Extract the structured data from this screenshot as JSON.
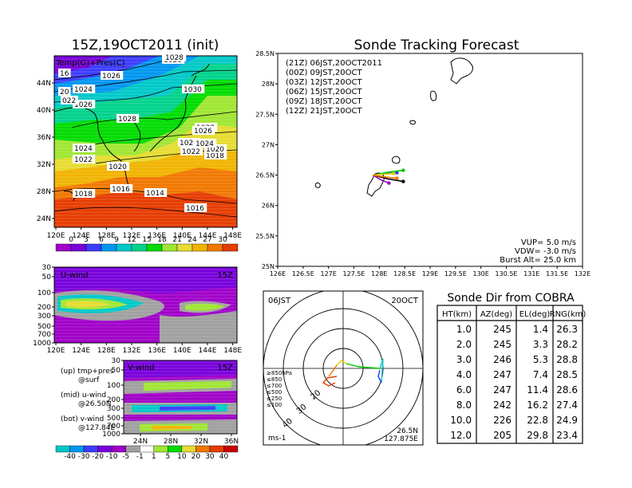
{
  "chart_data": [
    {
      "type": "map",
      "panel": "surface",
      "title": "15Z,19OCT2011 (init)",
      "label": "Temp(G)+Pres(C)",
      "x_ticks": [
        "120E",
        "124E",
        "128E",
        "132E",
        "136E",
        "140E",
        "144E",
        "148E"
      ],
      "y_ticks": [
        "24N",
        "28N",
        "32N",
        "36N",
        "40N",
        "44N"
      ],
      "isobar_labels": [
        "1028",
        "1026",
        "1024",
        "1026",
        "1028",
        "1030",
        "1028",
        "1026",
        "1024",
        "1022",
        "1020",
        "1018",
        "1016",
        "1014",
        "1016",
        "1018",
        "1020",
        "1022",
        "1024",
        "1026",
        "1028",
        "16",
        "20",
        "022"
      ],
      "colorbar": {
        "labels": [
          "0",
          "3",
          "6",
          "9",
          "12",
          "15",
          "18",
          "21",
          "24",
          "27",
          "30"
        ],
        "colors": [
          "#a000c8",
          "#7800dc",
          "#3c3cff",
          "#0096f0",
          "#00c8c8",
          "#00d28c",
          "#00dc00",
          "#a0e632",
          "#e6dc32",
          "#f0b400",
          "#f07800",
          "#e63c00"
        ]
      }
    },
    {
      "type": "cross-section",
      "panel": "u-wind",
      "label": "U-wind",
      "time": "15Z",
      "x_ticks": [
        "120E",
        "124E",
        "128E",
        "132E",
        "136E",
        "140E",
        "144E",
        "148E"
      ],
      "y_ticks": [
        "30",
        "50",
        "100",
        "200",
        "300",
        "500",
        "700",
        "1000"
      ]
    },
    {
      "type": "cross-section",
      "panel": "v-wind",
      "label": "V-wind",
      "time": "15Z",
      "x_ticks": [
        "24N",
        "28N",
        "32N",
        "36N"
      ],
      "y_ticks": [
        "30",
        "50",
        "100",
        "200",
        "300",
        "500",
        "700",
        "1000"
      ],
      "colorbar": {
        "labels": [
          "-40",
          "-30",
          "-20",
          "-10",
          "-5",
          "-1",
          "1",
          "5",
          "10",
          "20",
          "30",
          "40"
        ],
        "colors": [
          "#00c8c8",
          "#0096f0",
          "#3c3cff",
          "#7800dc",
          "#a000c8",
          "#a0a0a0",
          "#ffffff",
          "#a0e632",
          "#00dc00",
          "#e6dc32",
          "#f07800",
          "#e63c00"
        ]
      }
    },
    {
      "type": "map",
      "panel": "tracking",
      "title": "Sonde Tracking Forecast",
      "x_ticks": [
        "126E",
        "126.5E",
        "127E",
        "127.5E",
        "128E",
        "128.5E",
        "129E",
        "129.5E",
        "130E",
        "130.5E",
        "131E",
        "131.5E",
        "132E"
      ],
      "y_ticks": [
        "25N",
        "25.5N",
        "26N",
        "26.5N",
        "27N",
        "27.5N",
        "28N",
        "28.5N"
      ],
      "legend": [
        {
          "name": "(21Z)  06JST,20OCT2011",
          "color": "#000000"
        },
        {
          "name": "(00Z)  09JST,20OCT",
          "color": "#a000c8"
        },
        {
          "name": "(03Z)  12JST,20OCT",
          "color": "#1e3cff"
        },
        {
          "name": "(06Z)  15JST,20OCT",
          "color": "#00c800"
        },
        {
          "name": "(09Z)  18JST,20OCT",
          "color": "#e6c800"
        },
        {
          "name": "(12Z)  21JST,20OCT",
          "color": "#f07800"
        }
      ],
      "params": [
        "VUP=  5.0  m/s",
        "VDW=  -3.0  m/s",
        "Burst Alt=  25.0  km"
      ],
      "launch": {
        "lon": 127.875,
        "lat": 26.5
      }
    },
    {
      "type": "polar",
      "panel": "hodograph",
      "labels": {
        "time": "06JST",
        "date": "20OCT",
        "unit": "ms-1",
        "lat": "26.5N",
        "lon": "127.875E"
      },
      "ring_labels": [
        "20",
        "30",
        "40"
      ],
      "levels": [
        {
          "name": "≥850hPa",
          "color": "#e63c00"
        },
        {
          "name": "≤850",
          "color": "#f07800"
        },
        {
          "name": "≤700",
          "color": "#e6c800"
        },
        {
          "name": "≤500",
          "color": "#00c800"
        },
        {
          "name": "≤250",
          "color": "#00c8c8"
        },
        {
          "name": "≤100",
          "color": "#1e3cff"
        }
      ]
    },
    {
      "type": "table",
      "panel": "sonde-direction",
      "title": "Sonde Dir from COBRA",
      "columns": [
        "HT(km)",
        "AZ(deg)",
        "EL(deg)",
        "RNG(km)"
      ],
      "rows": [
        [
          "1.0",
          "245",
          "1.4",
          "26.3"
        ],
        [
          "2.0",
          "245",
          "3.3",
          "28.2"
        ],
        [
          "3.0",
          "246",
          "5.3",
          "28.8"
        ],
        [
          "4.0",
          "247",
          "7.4",
          "28.5"
        ],
        [
          "6.0",
          "247",
          "11.4",
          "28.6"
        ],
        [
          "8.0",
          "242",
          "16.2",
          "27.4"
        ],
        [
          "10.0",
          "226",
          "22.8",
          "24.9"
        ],
        [
          "12.0",
          "205",
          "29.8",
          "23.4"
        ]
      ]
    }
  ],
  "legend_notes": [
    {
      "line1": "(up) tmp+pres",
      "line2": "@surf"
    },
    {
      "line1": "(mid) u-wind",
      "line2": "@26.50N"
    },
    {
      "line1": "(bot) v-wind",
      "line2": "@127.84E"
    }
  ]
}
